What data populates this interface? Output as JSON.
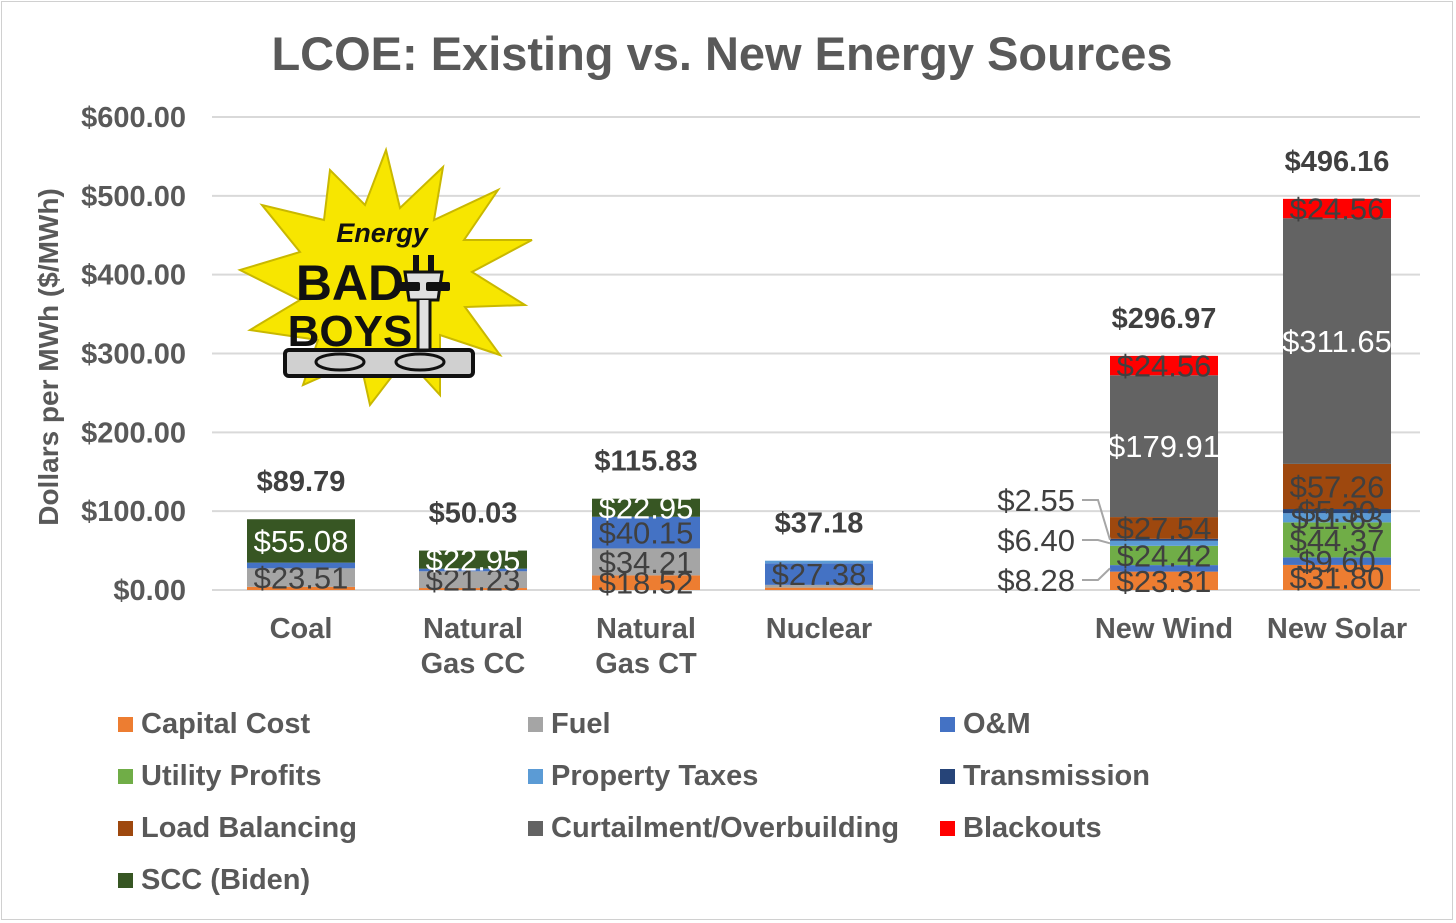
{
  "chart_data": {
    "type": "bar",
    "stacked": true,
    "title": "LCOE: Existing vs. New Energy Sources",
    "ylabel": "Dollars per MWh ($/MWh)",
    "ylim": [
      0,
      600
    ],
    "yticks": [
      "$0.00",
      "$100.00",
      "$200.00",
      "$300.00",
      "$400.00",
      "$500.00",
      "$600.00"
    ],
    "ytick_values": [
      0,
      100,
      200,
      300,
      400,
      500,
      600
    ],
    "grid": true,
    "legend_position": "bottom",
    "categories": [
      {
        "label_lines": [
          "Coal"
        ],
        "total_label": "$89.79"
      },
      {
        "label_lines": [
          "Natural",
          "Gas CC"
        ],
        "total_label": "$50.03"
      },
      {
        "label_lines": [
          "Natural",
          "Gas CT"
        ],
        "total_label": "$115.83"
      },
      {
        "label_lines": [
          "Nuclear"
        ],
        "total_label": "$37.18"
      },
      {
        "label_lines": [
          "New Wind"
        ],
        "total_label": "$296.97"
      },
      {
        "label_lines": [
          "New Solar"
        ],
        "total_label": "$496.16"
      }
    ],
    "series": [
      {
        "name": "Capital Cost",
        "color": "#ED7D31",
        "values": [
          4.0,
          2.5,
          18.52,
          3.0,
          23.31,
          31.8
        ],
        "labels": [
          "",
          "",
          "$18.52",
          "",
          "$23.31",
          "$31.80"
        ]
      },
      {
        "name": "Fuel",
        "color": "#A5A5A5",
        "values": [
          23.51,
          21.23,
          34.21,
          3.5,
          0,
          0
        ],
        "labels": [
          "$23.51",
          "$21.23",
          "$34.21",
          "",
          "",
          ""
        ]
      },
      {
        "name": "O&M",
        "color": "#4472C4",
        "values": [
          7.2,
          3.35,
          40.15,
          27.38,
          8.28,
          9.6
        ],
        "labels": [
          "",
          "",
          "$40.15",
          "$27.38",
          "",
          "$9.60"
        ]
      },
      {
        "name": "Utility Profits",
        "color": "#70AD47",
        "values": [
          0,
          0,
          0,
          0,
          24.42,
          44.37
        ],
        "labels": [
          "",
          "",
          "",
          "",
          "$24.42",
          "$44.37"
        ]
      },
      {
        "name": "Property Taxes",
        "color": "#5B9BD5",
        "values": [
          0,
          0,
          0,
          3.3,
          6.4,
          11.63
        ],
        "labels": [
          "",
          "",
          "",
          "",
          "",
          "$11.63"
        ]
      },
      {
        "name": "Transmission",
        "color": "#264478",
        "values": [
          0,
          0,
          0,
          0,
          2.55,
          5.3
        ],
        "labels": [
          "",
          "",
          "",
          "",
          "",
          "$5.30"
        ]
      },
      {
        "name": "Load Balancing",
        "color": "#9E480E",
        "values": [
          0,
          0,
          0,
          0,
          27.54,
          57.26
        ],
        "labels": [
          "",
          "",
          "",
          "",
          "$27.54",
          "$57.26"
        ]
      },
      {
        "name": "Curtailment/Overbuilding",
        "color": "#636363",
        "values": [
          0,
          0,
          0,
          0,
          179.91,
          311.65
        ],
        "labels": [
          "",
          "",
          "",
          "",
          "$179.91",
          "$311.65"
        ]
      },
      {
        "name": "Blackouts",
        "color": "#FF0000",
        "values": [
          0,
          0,
          0,
          0,
          24.56,
          24.56
        ],
        "labels": [
          "",
          "",
          "",
          "",
          "$24.56",
          "$24.56"
        ]
      },
      {
        "name": "SCC (Biden)",
        "color": "#375623",
        "values": [
          55.08,
          22.95,
          22.95,
          0,
          0,
          0
        ],
        "labels": [
          "$55.08",
          "$22.95",
          "$22.95",
          "",
          "",
          ""
        ]
      }
    ],
    "annotations": [
      "$2.55",
      "$6.40",
      "$8.28"
    ]
  },
  "logo": {
    "text_top": "Energy",
    "text_mid": "BAD",
    "text_bottom": "BOYS",
    "bg_color": "#F7E600"
  }
}
